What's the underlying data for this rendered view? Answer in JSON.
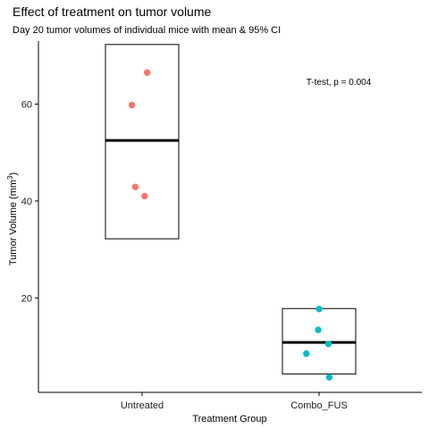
{
  "chart_data": {
    "type": "scatter",
    "title": "Effect of treatment on tumor volume",
    "subtitle": "Day 20 tumor volumes of individual mice with mean & 95% CI",
    "xlabel": "Treatment Group",
    "ylabel_main": "Tumor Volume (mm",
    "ylabel_sup": "3",
    "ylabel_close": ")",
    "categories": [
      "Untreated",
      "Combo_FUS"
    ],
    "ylim": [
      0.5,
      73
    ],
    "yticks": [
      20,
      40,
      60
    ],
    "annotation": "T-test, p = 0.004",
    "series": [
      {
        "category": "Untreated",
        "color": "#F8766D",
        "points": [
          {
            "x_offset": 0.06,
            "y": 66.5
          },
          {
            "x_offset": -0.12,
            "y": 59.8
          },
          {
            "x_offset": -0.08,
            "y": 42.9
          },
          {
            "x_offset": 0.03,
            "y": 41.0
          }
        ],
        "mean": 52.5,
        "ci": [
          32.2,
          72.3
        ]
      },
      {
        "category": "Combo_FUS",
        "color": "#00BFC4",
        "points": [
          {
            "x_offset": 0.0,
            "y": 17.7
          },
          {
            "x_offset": -0.01,
            "y": 13.4
          },
          {
            "x_offset": 0.11,
            "y": 10.5
          },
          {
            "x_offset": -0.15,
            "y": 8.5
          },
          {
            "x_offset": 0.12,
            "y": 3.6
          }
        ],
        "mean": 10.8,
        "ci": [
          4.3,
          17.8
        ]
      }
    ]
  },
  "colors": {
    "axis": "#000000",
    "box": "#000000"
  }
}
